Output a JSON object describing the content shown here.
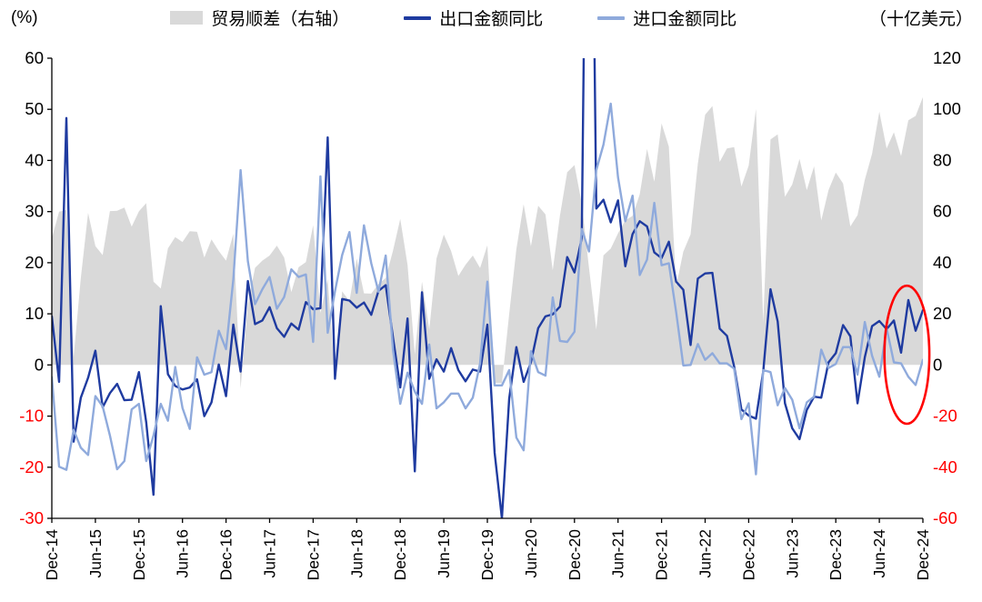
{
  "style": {
    "background": "#ffffff",
    "axis_color": "#000000",
    "negative_tick_color": "#ff0000",
    "annotation_color": "#ff0000"
  },
  "chart_data": {
    "type": "combo",
    "title": "",
    "left_axis": {
      "unit": "(%)",
      "min": -30,
      "max": 60,
      "ticks": [
        60,
        50,
        40,
        30,
        20,
        10,
        0,
        -10,
        -20,
        -30
      ]
    },
    "right_axis": {
      "unit": "（十亿美元）",
      "min": -60,
      "max": 120,
      "ticks": [
        120,
        100,
        80,
        60,
        40,
        20,
        0,
        -20,
        -40,
        -60
      ]
    },
    "x_tick_labels": [
      "Dec-14",
      "Jun-15",
      "Dec-15",
      "Jun-16",
      "Dec-16",
      "Jun-17",
      "Dec-17",
      "Jun-18",
      "Dec-18",
      "Jun-19",
      "Dec-19",
      "Jun-20",
      "Dec-20",
      "Jun-21",
      "Dec-21",
      "Jun-22",
      "Dec-22",
      "Jun-23",
      "Dec-23",
      "Jun-24",
      "Dec-24"
    ],
    "x_tick_indices": [
      0,
      6,
      12,
      18,
      24,
      30,
      36,
      42,
      48,
      54,
      60,
      66,
      72,
      78,
      84,
      90,
      96,
      102,
      108,
      114,
      120
    ],
    "frequency": "monthly from Dec-2014 to Dec-2024",
    "grid": false,
    "legend_position": "top",
    "series": [
      {
        "name": "贸易顺差（右轴）",
        "type": "area",
        "axis": "right",
        "color": "#d9d9d9",
        "values": [
          49.6,
          60.0,
          60.6,
          3.1,
          34.1,
          59.5,
          46.5,
          43.0,
          60.2,
          60.3,
          61.6,
          54.1,
          60.1,
          63.3,
          32.6,
          29.9,
          45.6,
          50.0,
          48.1,
          52.3,
          52.1,
          42.0,
          49.1,
          44.6,
          40.8,
          51.3,
          -9.2,
          23.9,
          38.0,
          40.8,
          42.8,
          46.7,
          42.0,
          28.5,
          38.2,
          40.2,
          54.7,
          20.3,
          33.7,
          -5.0,
          28.8,
          24.9,
          41.6,
          28.0,
          27.9,
          31.7,
          34.0,
          44.7,
          57.1,
          39.2,
          4.1,
          32.6,
          13.8,
          41.7,
          51.0,
          44.6,
          34.8,
          39.2,
          42.8,
          37.9,
          46.8,
          -7.1,
          -7.1,
          19.9,
          45.3,
          62.9,
          46.4,
          62.3,
          58.9,
          37.0,
          58.4,
          75.4,
          78.2,
          63.2,
          37.9,
          13.8,
          42.9,
          45.5,
          51.5,
          56.6,
          58.3,
          66.8,
          84.5,
          71.7,
          94.5,
          85.4,
          30.7,
          44.3,
          51.1,
          78.8,
          97.9,
          101.3,
          79.4,
          84.7,
          85.2,
          69.8,
          78.0,
          100.2,
          16.8,
          88.2,
          90.2,
          65.8,
          70.6,
          80.6,
          68.4,
          77.7,
          56.5,
          68.4,
          75.3,
          71.0,
          54.2,
          58.6,
          72.4,
          82.6,
          99.1,
          84.7,
          91.0,
          81.7,
          95.7,
          97.4,
          104.8
        ]
      },
      {
        "name": "出口金额同比",
        "type": "line",
        "axis": "left",
        "color": "#1f3ba0",
        "values": [
          9.5,
          -3.3,
          48.3,
          -15.0,
          -6.4,
          -2.5,
          2.8,
          -8.3,
          -5.5,
          -3.7,
          -6.9,
          -6.8,
          -1.4,
          -11.2,
          -25.4,
          11.5,
          -1.8,
          -4.1,
          -4.8,
          -4.4,
          -2.8,
          -10.0,
          -7.3,
          0.1,
          -6.1,
          7.9,
          -1.3,
          16.4,
          8.0,
          8.7,
          11.3,
          7.2,
          5.5,
          8.1,
          6.9,
          12.3,
          10.9,
          11.1,
          44.5,
          -2.7,
          12.9,
          12.6,
          11.2,
          12.2,
          9.8,
          14.5,
          15.6,
          5.4,
          -4.4,
          9.1,
          -20.8,
          14.2,
          -2.7,
          1.1,
          -1.3,
          3.3,
          -1.0,
          -3.2,
          -0.9,
          -1.3,
          7.9,
          -17.2,
          -30.0,
          -6.6,
          3.5,
          -3.3,
          0.5,
          7.2,
          9.5,
          9.9,
          11.4,
          21.1,
          18.1,
          24.8,
          154.9,
          30.6,
          32.3,
          27.9,
          32.2,
          19.3,
          25.6,
          28.1,
          27.1,
          22.0,
          20.9,
          24.1,
          16.3,
          14.7,
          3.9,
          16.9,
          17.9,
          18.0,
          7.1,
          5.7,
          -0.3,
          -8.7,
          -9.9,
          -10.5,
          -1.3,
          14.8,
          8.5,
          -7.5,
          -12.4,
          -14.5,
          -8.8,
          -6.2,
          -6.4,
          0.5,
          2.3,
          7.8,
          5.6,
          -7.5,
          1.5,
          7.6,
          8.6,
          7.0,
          8.7,
          2.4,
          12.7,
          6.7,
          10.7
        ]
      },
      {
        "name": "进口金额同比",
        "type": "line",
        "axis": "left",
        "color": "#8faadc",
        "values": [
          -2.4,
          -19.9,
          -20.5,
          -12.7,
          -16.2,
          -17.6,
          -6.1,
          -8.1,
          -13.8,
          -20.4,
          -18.8,
          -8.7,
          -7.6,
          -18.8,
          -13.8,
          -7.6,
          -10.9,
          -0.4,
          -8.4,
          -12.5,
          1.5,
          -1.9,
          -1.4,
          6.7,
          3.1,
          16.7,
          38.1,
          20.3,
          11.9,
          14.8,
          17.2,
          11.0,
          13.3,
          18.7,
          17.2,
          17.7,
          4.5,
          36.9,
          6.3,
          14.4,
          21.5,
          26.0,
          14.1,
          27.3,
          19.9,
          14.3,
          21.4,
          3.0,
          -7.6,
          -1.5,
          -5.2,
          -7.6,
          4.0,
          -8.5,
          -7.3,
          -5.6,
          -5.6,
          -8.5,
          -6.4,
          0.3,
          16.3,
          -4.0,
          -4.0,
          -1.0,
          -14.2,
          -16.7,
          2.7,
          -1.4,
          -2.1,
          13.2,
          4.7,
          4.5,
          6.5,
          26.6,
          22.2,
          38.1,
          43.1,
          51.1,
          36.7,
          28.1,
          33.1,
          17.6,
          20.6,
          31.7,
          19.5,
          19.9,
          10.4,
          -0.1,
          0.0,
          4.1,
          1.0,
          2.3,
          0.3,
          0.3,
          -0.7,
          -10.6,
          -7.5,
          -21.4,
          -1.0,
          -1.4,
          -7.9,
          -4.5,
          -6.8,
          -12.4,
          -7.3,
          -6.2,
          3.0,
          -0.6,
          0.2,
          3.5,
          3.5,
          -1.9,
          8.4,
          1.8,
          -2.3,
          7.2,
          0.5,
          0.3,
          -2.3,
          -3.9,
          1.0
        ]
      }
    ],
    "annotation": {
      "type": "ellipse",
      "color": "#ff0000",
      "center_index": 117.8,
      "center_value_left": 2.0,
      "rx_months": 3.1,
      "ry_left_units": 13.5,
      "note": "red oval highlighting the latest (late-2024) export/import data points"
    }
  }
}
